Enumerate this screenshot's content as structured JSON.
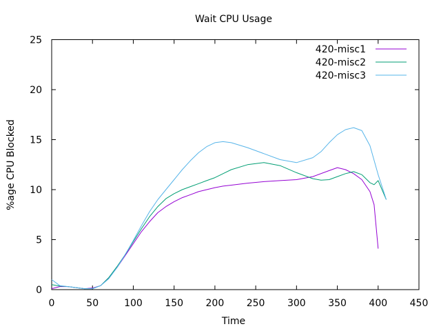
{
  "chart_data": {
    "type": "line",
    "title": "Wait CPU Usage",
    "xlabel": "Time",
    "ylabel": "%age CPU Blocked",
    "xlim": [
      0,
      450
    ],
    "ylim": [
      0,
      25
    ],
    "xticks": [
      0,
      50,
      100,
      150,
      200,
      250,
      300,
      350,
      400,
      450
    ],
    "yticks": [
      0,
      5,
      10,
      15,
      20,
      25
    ],
    "grid": false,
    "legend_position": "top-right",
    "series": [
      {
        "name": "420-misc1",
        "color": "#9400d3",
        "x": [
          0,
          10,
          20,
          30,
          40,
          50,
          60,
          70,
          80,
          90,
          100,
          110,
          120,
          130,
          140,
          150,
          160,
          170,
          180,
          190,
          200,
          210,
          220,
          240,
          260,
          280,
          300,
          320,
          340,
          350,
          360,
          370,
          380,
          390,
          395,
          400
        ],
        "y": [
          0.1,
          0.3,
          0.3,
          0.2,
          0.1,
          0.15,
          0.4,
          1.2,
          2.2,
          3.4,
          4.6,
          5.8,
          6.8,
          7.7,
          8.3,
          8.8,
          9.2,
          9.5,
          9.8,
          10.0,
          10.2,
          10.35,
          10.45,
          10.65,
          10.8,
          10.9,
          11.0,
          11.3,
          11.9,
          12.2,
          12.0,
          11.6,
          11.0,
          9.8,
          8.5,
          4.1
        ]
      },
      {
        "name": "420-misc2",
        "color": "#009e73",
        "x": [
          0,
          10,
          20,
          30,
          40,
          50,
          60,
          70,
          80,
          90,
          100,
          110,
          120,
          130,
          140,
          150,
          160,
          170,
          180,
          190,
          200,
          210,
          220,
          240,
          260,
          280,
          300,
          320,
          330,
          340,
          350,
          360,
          370,
          380,
          390,
          395,
          400,
          410
        ],
        "y": [
          0.5,
          0.35,
          0.3,
          0.2,
          0.1,
          0.1,
          0.4,
          1.2,
          2.3,
          3.5,
          4.8,
          6.1,
          7.3,
          8.3,
          9.1,
          9.6,
          10.0,
          10.3,
          10.6,
          10.9,
          11.2,
          11.6,
          12.0,
          12.5,
          12.7,
          12.4,
          11.7,
          11.1,
          10.95,
          11.0,
          11.3,
          11.6,
          11.8,
          11.5,
          10.7,
          10.5,
          10.9,
          9.0
        ]
      },
      {
        "name": "420-misc3",
        "color": "#56b4e9",
        "x": [
          0,
          10,
          20,
          30,
          40,
          50,
          60,
          70,
          80,
          90,
          100,
          110,
          120,
          130,
          140,
          150,
          160,
          170,
          180,
          190,
          200,
          210,
          220,
          240,
          260,
          280,
          300,
          320,
          330,
          340,
          350,
          360,
          370,
          380,
          390,
          400,
          410
        ],
        "y": [
          1.0,
          0.4,
          0.3,
          0.2,
          0.1,
          0.1,
          0.4,
          1.1,
          2.2,
          3.5,
          4.9,
          6.4,
          7.8,
          9.0,
          10.0,
          11.0,
          12.0,
          12.9,
          13.7,
          14.3,
          14.7,
          14.8,
          14.7,
          14.2,
          13.6,
          13.0,
          12.7,
          13.2,
          13.8,
          14.7,
          15.5,
          16.0,
          16.2,
          15.9,
          14.4,
          11.5,
          9.0
        ]
      }
    ]
  }
}
